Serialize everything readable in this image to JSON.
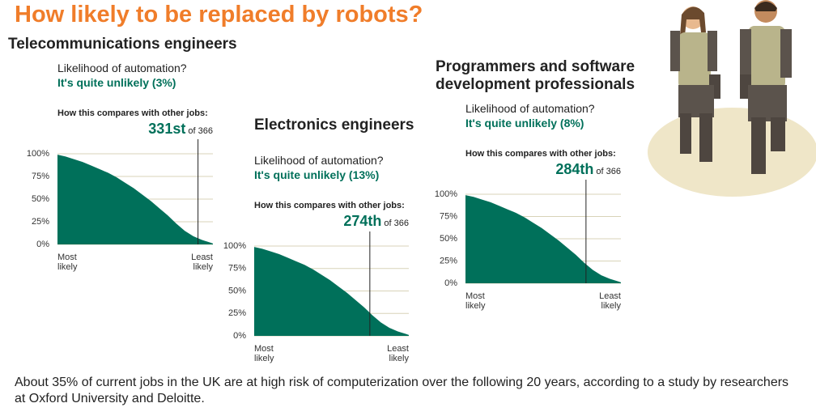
{
  "header": {
    "title": "How likely to be replaced by robots?"
  },
  "chart_data": [
    {
      "type": "area",
      "title": "Telecommunications engineers",
      "question": "Likelihood of automation?",
      "answer": "It's quite unlikely (3%)",
      "compare_label": "How this compares with other jobs:",
      "marker": {
        "value": 331,
        "label": "331st"
      },
      "marker_suffix": "of 366",
      "x": [
        1,
        20,
        40,
        60,
        80,
        100,
        120,
        140,
        160,
        180,
        200,
        220,
        240,
        260,
        280,
        300,
        320,
        340,
        360,
        366
      ],
      "values": [
        99,
        97,
        94,
        91,
        87,
        83,
        79,
        74,
        68,
        62,
        55,
        48,
        40,
        32,
        23,
        15,
        9,
        5,
        2,
        1
      ],
      "color": "#00705a",
      "xlim": [
        1,
        366
      ],
      "ylim": [
        0,
        100
      ],
      "yticks": [
        {
          "value": 0,
          "label": "0%"
        },
        {
          "value": 25,
          "label": "25%"
        },
        {
          "value": 50,
          "label": "50%"
        },
        {
          "value": 75,
          "label": "75%"
        },
        {
          "value": 100,
          "label": "100%"
        }
      ],
      "xticks": [
        {
          "value": 1,
          "label": "Most likely"
        },
        {
          "value": 366,
          "label": "Least likely"
        }
      ],
      "grid": true
    },
    {
      "type": "area",
      "title": "Electronics engineers",
      "question": "Likelihood of automation?",
      "answer": "It's quite unlikely (13%)",
      "compare_label": "How this compares with other jobs:",
      "marker": {
        "value": 274,
        "label": "274th"
      },
      "marker_suffix": "of 366",
      "x": [
        1,
        20,
        40,
        60,
        80,
        100,
        120,
        140,
        160,
        180,
        200,
        220,
        240,
        260,
        280,
        300,
        320,
        340,
        360,
        366
      ],
      "values": [
        99,
        97,
        94,
        91,
        87,
        83,
        79,
        74,
        68,
        62,
        55,
        48,
        40,
        32,
        23,
        15,
        9,
        5,
        2,
        1
      ],
      "color": "#00705a",
      "xlim": [
        1,
        366
      ],
      "ylim": [
        0,
        100
      ],
      "yticks": [
        {
          "value": 0,
          "label": "0%"
        },
        {
          "value": 25,
          "label": "25%"
        },
        {
          "value": 50,
          "label": "50%"
        },
        {
          "value": 75,
          "label": "75%"
        },
        {
          "value": 100,
          "label": "100%"
        }
      ],
      "xticks": [
        {
          "value": 1,
          "label": "Most likely"
        },
        {
          "value": 366,
          "label": "Least likely"
        }
      ],
      "grid": true
    },
    {
      "type": "area",
      "title": "Programmers and software development professionals",
      "question": "Likelihood of automation?",
      "answer": "It's quite unlikely (8%)",
      "compare_label": "How this compares with other jobs:",
      "marker": {
        "value": 284,
        "label": "284th"
      },
      "marker_suffix": "of 366",
      "x": [
        1,
        20,
        40,
        60,
        80,
        100,
        120,
        140,
        160,
        180,
        200,
        220,
        240,
        260,
        280,
        300,
        320,
        340,
        360,
        366
      ],
      "values": [
        99,
        97,
        94,
        91,
        87,
        83,
        79,
        74,
        68,
        62,
        55,
        48,
        40,
        32,
        23,
        15,
        9,
        5,
        2,
        1
      ],
      "color": "#00705a",
      "xlim": [
        1,
        366
      ],
      "ylim": [
        0,
        100
      ],
      "yticks": [
        {
          "value": 0,
          "label": "0%"
        },
        {
          "value": 25,
          "label": "25%"
        },
        {
          "value": 50,
          "label": "50%"
        },
        {
          "value": 75,
          "label": "75%"
        },
        {
          "value": 100,
          "label": "100%"
        }
      ],
      "xticks": [
        {
          "value": 1,
          "label": "Most likely"
        },
        {
          "value": 366,
          "label": "Least likely"
        }
      ],
      "grid": true
    }
  ],
  "footer": {
    "text": "About 35% of current jobs in the UK are at high risk of computerization over the following 20 years, according to a study by researchers at Oxford University and Deloitte."
  }
}
